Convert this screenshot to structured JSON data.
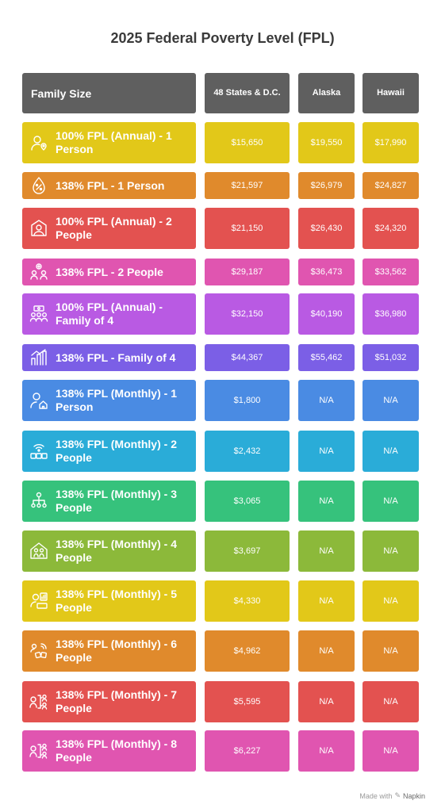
{
  "title": "2025 Federal Poverty Level (FPL)",
  "header": {
    "family_size": "Family Size",
    "states": "48 States & D.C.",
    "alaska": "Alaska",
    "hawaii": "Hawaii"
  },
  "rows": [
    {
      "label": "100% FPL (Annual) - 1 Person",
      "states": "$15,650",
      "alaska": "$19,550",
      "hawaii": "$17,990",
      "color": "#e2c819",
      "icon": "person-location-icon"
    },
    {
      "label": "138% FPL - 1 Person",
      "states": "$21,597",
      "alaska": "$26,979",
      "hawaii": "$24,827",
      "color": "#e08a2c",
      "icon": "percent-drop-icon"
    },
    {
      "label": "100% FPL (Annual) - 2 People",
      "states": "$21,150",
      "alaska": "$26,430",
      "hawaii": "$24,320",
      "color": "#e35250",
      "icon": "person-frame-icon"
    },
    {
      "label": "138% FPL - 2 People",
      "states": "$29,187",
      "alaska": "$36,473",
      "hawaii": "$33,562",
      "color": "#e055b0",
      "icon": "people-plus-icon"
    },
    {
      "label": "100% FPL (Annual) - Family of 4",
      "states": "$32,150",
      "alaska": "$40,190",
      "hawaii": "$36,980",
      "color": "#b95ae3",
      "icon": "family-money-icon"
    },
    {
      "label": "138% FPL - Family of 4",
      "states": "$44,367",
      "alaska": "$55,462",
      "hawaii": "$51,032",
      "color": "#7b5fe6",
      "icon": "growth-chart-icon"
    },
    {
      "label": "138% FPL (Monthly) - 1 Person",
      "states": "$1,800",
      "alaska": "N/A",
      "hawaii": "N/A",
      "color": "#4a8be3",
      "icon": "person-home-icon"
    },
    {
      "label": "138% FPL (Monthly) - 2 People",
      "states": "$2,432",
      "alaska": "N/A",
      "hawaii": "N/A",
      "color": "#2aacd8",
      "icon": "people-wifi-icon"
    },
    {
      "label": "138% FPL (Monthly) - 3 People",
      "states": "$3,065",
      "alaska": "N/A",
      "hawaii": "N/A",
      "color": "#36c27c",
      "icon": "people-network-icon"
    },
    {
      "label": "138% FPL (Monthly) - 4 People",
      "states": "$3,697",
      "alaska": "N/A",
      "hawaii": "N/A",
      "color": "#8cb93a",
      "icon": "family-home-icon"
    },
    {
      "label": "138% FPL (Monthly) - 5 People",
      "states": "$4,330",
      "alaska": "N/A",
      "hawaii": "N/A",
      "color": "#e2c819",
      "icon": "person-chart-icon"
    },
    {
      "label": "138% FPL (Monthly) - 6 People",
      "states": "$4,962",
      "alaska": "N/A",
      "hawaii": "N/A",
      "color": "#e08a2c",
      "icon": "people-signal-icon"
    },
    {
      "label": "138% FPL (Monthly) - 7 People",
      "states": "$5,595",
      "alaska": "N/A",
      "hawaii": "N/A",
      "color": "#e35250",
      "icon": "people-branch-icon"
    },
    {
      "label": "138% FPL (Monthly) - 8 People",
      "states": "$6,227",
      "alaska": "N/A",
      "hawaii": "N/A",
      "color": "#e055b0",
      "icon": "people-branch-icon"
    }
  ],
  "footer": {
    "made_with": "Made with",
    "brand": "Napkin"
  }
}
